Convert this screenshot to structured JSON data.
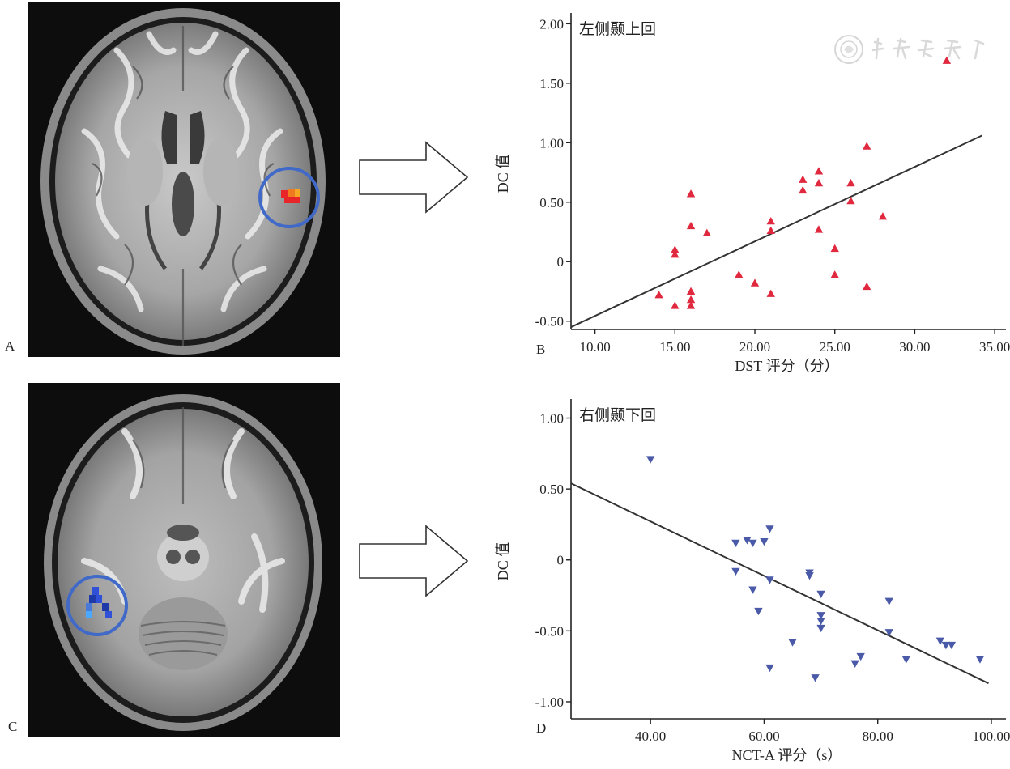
{
  "panels": {
    "a": {
      "letter": "A"
    },
    "b": {
      "letter": "B"
    },
    "c": {
      "letter": "C"
    },
    "d": {
      "letter": "D"
    }
  },
  "colors": {
    "highlight_circle": "#4169c8",
    "activation_hot": [
      "#e8262a",
      "#f07a20",
      "#f5a623"
    ],
    "activation_cold": [
      "#1e3aa8",
      "#3050d8",
      "#4aa8ff"
    ],
    "scatter_b": "#e0293e",
    "scatter_d": "#4a5aa8",
    "fit_line": "#333333"
  },
  "icons": {
    "arrow_b": "right-arrow-outline",
    "arrow_d": "right-arrow-outline",
    "watermark": "journal-seal-icon"
  },
  "chart_data": [
    {
      "type": "scatter",
      "title": "左侧颞上回",
      "xlabel": "DST 评分（分）",
      "ylabel": "DC 值",
      "xlim": [
        8.5,
        35.5
      ],
      "ylim": [
        -0.57,
        2.05
      ],
      "xticks": [
        "10.00",
        "15.00",
        "20.00",
        "25.00",
        "30.00",
        "35.00"
      ],
      "xtick_values": [
        10,
        15,
        20,
        25,
        30,
        35
      ],
      "yticks": [
        "-0.50",
        "0",
        "0.50",
        "1.00",
        "1.50",
        "2.00"
      ],
      "ytick_values": [
        -0.5,
        0,
        0.5,
        1.0,
        1.5,
        2.0
      ],
      "marker": "triangle-up",
      "grid": false,
      "points": [
        [
          14,
          -0.28
        ],
        [
          15,
          0.1
        ],
        [
          15,
          0.06
        ],
        [
          15,
          -0.37
        ],
        [
          16,
          0.57
        ],
        [
          16,
          0.3
        ],
        [
          16,
          -0.25
        ],
        [
          16,
          -0.32
        ],
        [
          16,
          -0.37
        ],
        [
          17,
          0.24
        ],
        [
          19,
          -0.11
        ],
        [
          20,
          -0.18
        ],
        [
          21,
          0.34
        ],
        [
          21,
          0.26
        ],
        [
          21,
          -0.27
        ],
        [
          23,
          0.69
        ],
        [
          23,
          0.6
        ],
        [
          24,
          0.76
        ],
        [
          24,
          0.66
        ],
        [
          24,
          0.27
        ],
        [
          25,
          0.11
        ],
        [
          25,
          -0.11
        ],
        [
          26,
          0.66
        ],
        [
          26,
          0.51
        ],
        [
          27,
          0.97
        ],
        [
          27,
          -0.21
        ],
        [
          28,
          0.38
        ],
        [
          32,
          1.69
        ]
      ],
      "fit_line": [
        [
          8.5,
          -0.55
        ],
        [
          34.2,
          1.06
        ]
      ]
    },
    {
      "type": "scatter",
      "title": "右侧颞下回",
      "xlabel": "NCT-A 评分（s）",
      "ylabel": "DC 值",
      "xlim": [
        26,
        102
      ],
      "ylim": [
        -1.12,
        1.1
      ],
      "xticks": [
        "40.00",
        "60.00",
        "80.00",
        "100.00"
      ],
      "xtick_values": [
        40,
        60,
        80,
        100
      ],
      "yticks": [
        "-1.00",
        "-0.50",
        "0",
        "0.50",
        "1.00"
      ],
      "ytick_values": [
        -1.0,
        -0.5,
        0,
        0.5,
        1.0
      ],
      "marker": "triangle-down",
      "grid": false,
      "points": [
        [
          40,
          0.71
        ],
        [
          55,
          0.12
        ],
        [
          55,
          -0.08
        ],
        [
          57,
          0.14
        ],
        [
          58,
          0.12
        ],
        [
          58,
          -0.21
        ],
        [
          59,
          -0.36
        ],
        [
          60,
          0.13
        ],
        [
          61,
          -0.14
        ],
        [
          61,
          0.22
        ],
        [
          61,
          -0.76
        ],
        [
          65,
          -0.58
        ],
        [
          68,
          -0.09
        ],
        [
          68,
          -0.11
        ],
        [
          69,
          -0.83
        ],
        [
          70,
          -0.24
        ],
        [
          70,
          -0.39
        ],
        [
          70,
          -0.43
        ],
        [
          70,
          -0.48
        ],
        [
          76,
          -0.73
        ],
        [
          77,
          -0.68
        ],
        [
          82,
          -0.51
        ],
        [
          82,
          -0.29
        ],
        [
          85,
          -0.7
        ],
        [
          91,
          -0.57
        ],
        [
          92,
          -0.6
        ],
        [
          93,
          -0.6
        ],
        [
          98,
          -0.7
        ]
      ],
      "fit_line": [
        [
          26,
          0.54
        ],
        [
          99.5,
          -0.87
        ]
      ]
    }
  ]
}
